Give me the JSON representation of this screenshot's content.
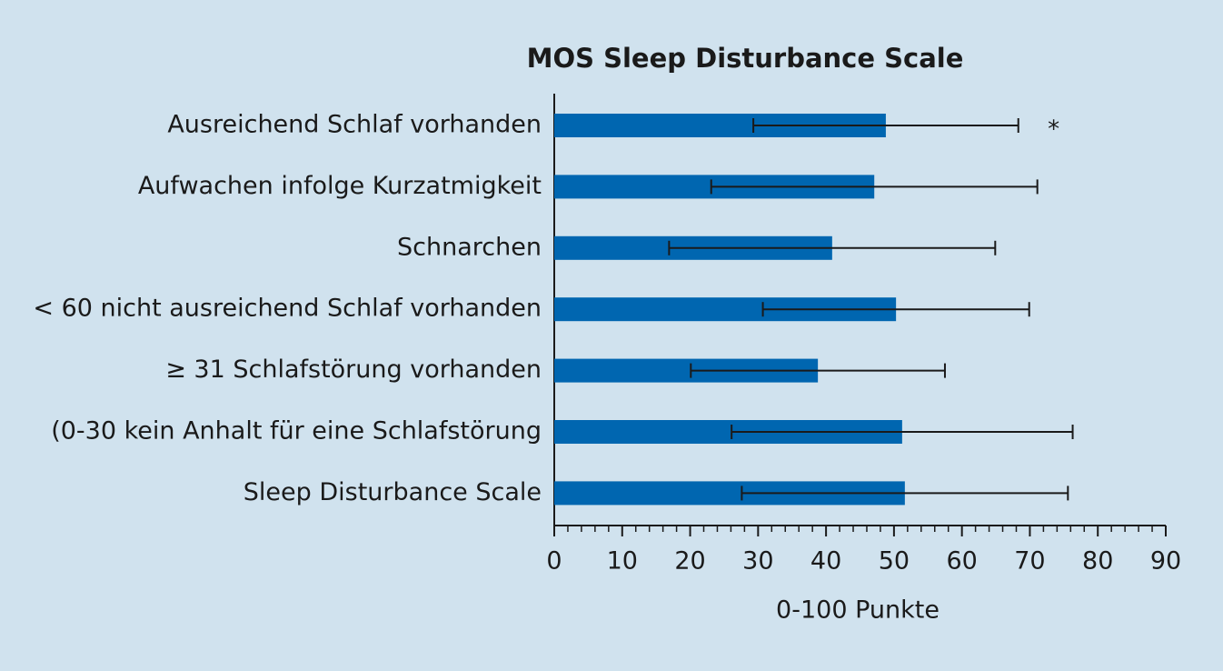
{
  "chart_data": {
    "type": "bar",
    "orientation": "horizontal",
    "title": "MOS Sleep Disturbance Scale",
    "xlabel": "0-100 Punkte",
    "categories": [
      "Ausreichend Schlaf vorhanden",
      "Aufwachen infolge Kurzatmigkeit",
      "Schnarchen",
      "< 60 nicht ausreichend Schlaf vorhanden",
      "≥ 31 Schlafstörung vorhanden",
      "(0-30 kein Anhalt für eine Schlafstörung",
      "Sleep Disturbance Scale"
    ],
    "values": [
      48.8,
      47.1,
      40.9,
      50.3,
      38.8,
      51.2,
      51.6
    ],
    "errors": [
      19.5,
      24.0,
      24.0,
      19.6,
      18.7,
      25.1,
      24.0
    ],
    "color": "#0066b0",
    "xlim": [
      0,
      90
    ],
    "xticks": [
      0,
      10,
      20,
      30,
      40,
      50,
      60,
      70,
      80,
      90
    ],
    "xticks_minor": [
      2,
      4,
      6,
      8,
      12,
      14,
      16,
      18,
      22,
      24,
      26,
      28,
      32,
      34,
      36,
      38,
      42,
      44,
      46,
      48,
      52,
      54,
      56,
      58,
      62,
      64,
      66,
      68,
      72,
      74,
      76,
      78,
      82,
      84,
      86,
      88
    ],
    "annotations": [
      {
        "text": "*",
        "category": 0,
        "x": 73.5
      }
    ]
  }
}
